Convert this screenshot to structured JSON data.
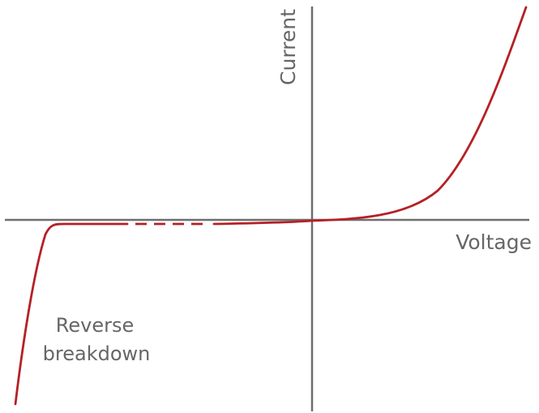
{
  "diagram": {
    "type": "diode I-V characteristic curve",
    "axes": {
      "x_label": "Voltage",
      "y_label": "Current"
    },
    "annotations": {
      "reverse_line1": "Reverse",
      "reverse_line2": "breakdown"
    },
    "regions": [
      "reverse-breakdown",
      "reverse-leakage (dashed break)",
      "forward-conduction"
    ],
    "colors": {
      "axis": "#6e6e6e",
      "curve": "#b52025",
      "text": "#666666",
      "background": "#ffffff"
    }
  }
}
